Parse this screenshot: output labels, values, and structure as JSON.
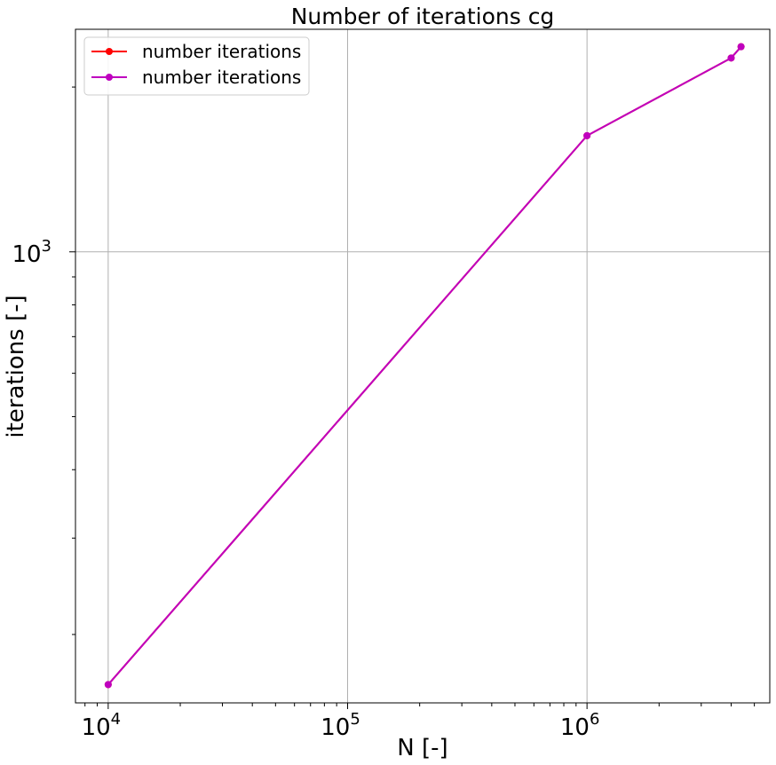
{
  "chart_data": {
    "type": "line",
    "title": "Number of iterations cg",
    "xlabel": "N [-]",
    "ylabel": "iterations [-]",
    "xscale": "log",
    "yscale": "log",
    "xlim": [
      7300,
      5800000
    ],
    "ylim": [
      150,
      2550
    ],
    "grid": true,
    "legend_position": "top-left",
    "x_ticks": [
      {
        "value": 10000,
        "base": "10",
        "exp": "4"
      },
      {
        "value": 100000,
        "base": "10",
        "exp": "5"
      },
      {
        "value": 1000000,
        "base": "10",
        "exp": "6"
      }
    ],
    "y_ticks": [
      {
        "value": 1000,
        "base": "10",
        "exp": "3"
      }
    ],
    "series": [
      {
        "name": "number iterations",
        "color": "#ff0000",
        "x": [
          10000,
          1000000,
          4000000,
          4400000
        ],
        "y": [
          162,
          1630,
          2260,
          2370
        ]
      },
      {
        "name": "number iterations",
        "color": "#bf00bf",
        "x": [
          10000,
          1000000,
          4000000,
          4400000
        ],
        "y": [
          162,
          1630,
          2260,
          2370
        ]
      }
    ]
  }
}
